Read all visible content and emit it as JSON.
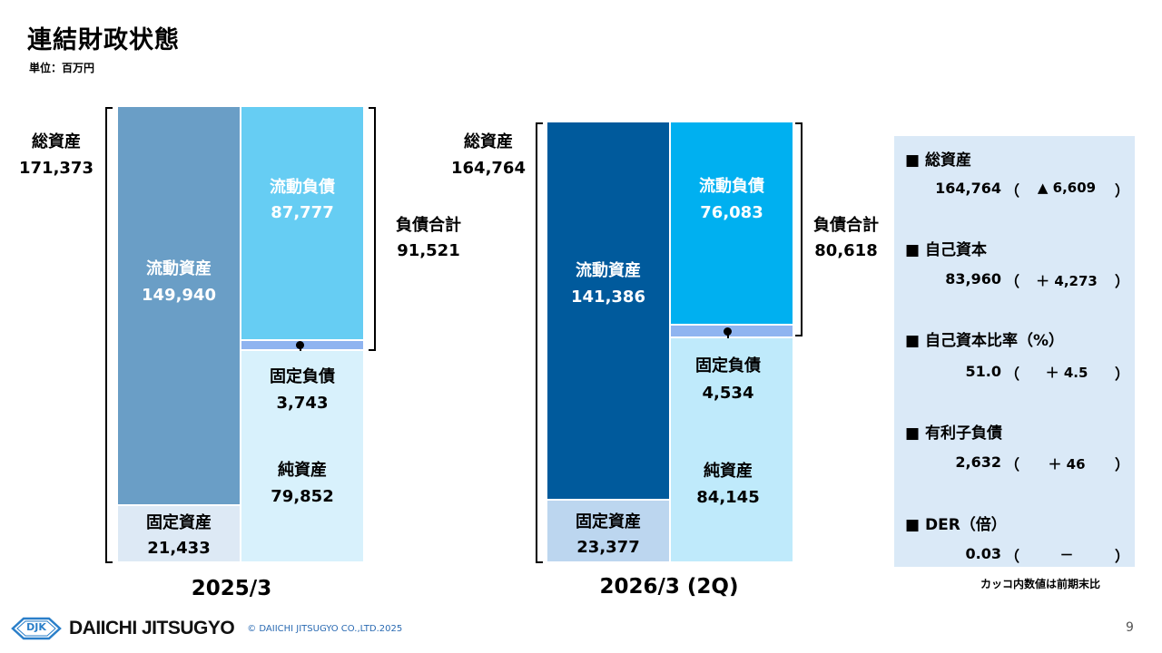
{
  "title": "連結財政状態",
  "unit": "単位：百万円",
  "left": {
    "period": "2025/3",
    "total_assets_label": "総資産",
    "total_assets_value": "171,373",
    "current_assets_label": "流動資産",
    "current_assets_value": "149,940",
    "fixed_assets_label": "固定資産",
    "fixed_assets_value": "21,433",
    "current_liab_label": "流動負債",
    "current_liab_value": "87,777",
    "fixed_liab_label": "固定負債",
    "fixed_liab_value": "3,743",
    "net_assets_label": "純資産",
    "net_assets_value": "79,852",
    "total_liab_label": "負債合計",
    "total_liab_value": "91,521"
  },
  "right": {
    "period": "2026/3 (2Q)",
    "total_assets_label": "総資産",
    "total_assets_value": "164,764",
    "current_assets_label": "流動資産",
    "current_assets_value": "141,386",
    "fixed_assets_label": "固定資産",
    "fixed_assets_value": "23,377",
    "current_liab_label": "流動負債",
    "current_liab_value": "76,083",
    "fixed_liab_label": "固定負債",
    "fixed_liab_value": "4,534",
    "net_assets_label": "純資産",
    "net_assets_value": "84,145",
    "total_liab_label": "負債合計",
    "total_liab_value": "80,618"
  },
  "summary": [
    {
      "label": "■ 総資産",
      "value": "164,764",
      "change": "▲ 6,609"
    },
    {
      "label": "■ 自己資本",
      "value": "83,960",
      "change": "＋ 4,273"
    },
    {
      "label": "■ 自己資本比率（%）",
      "value": "51.0",
      "change": "＋ 4.5"
    },
    {
      "label": "■ 有利子負債",
      "value": "2,632",
      "change": "＋ 46"
    },
    {
      "label": "■ DER（倍）",
      "value": "0.03",
      "change": "－"
    }
  ],
  "paren_open": "（",
  "paren_close": "）",
  "note": "カッコ内数値は前期末比",
  "footer": {
    "logo_mark": "DJK",
    "company": "DAIICHI JITSUGYO",
    "copyright": "© DAIICHI JITSUGYO CO.,LTD.2025"
  },
  "page_number": "9",
  "colors": {
    "left_current_assets": "#6a9ec6",
    "left_fixed_assets": "#dde9f5",
    "left_current_liab": "#66cdf3",
    "left_net_assets": "#d8f1fc",
    "right_current_assets": "#005a9c",
    "right_fixed_assets": "#bcd6ef",
    "right_current_liab": "#00b0f0",
    "right_net_assets": "#bfeafb",
    "fixed_liab_strip": "#8fb4f0",
    "panel_bg": "#dae9f7"
  }
}
